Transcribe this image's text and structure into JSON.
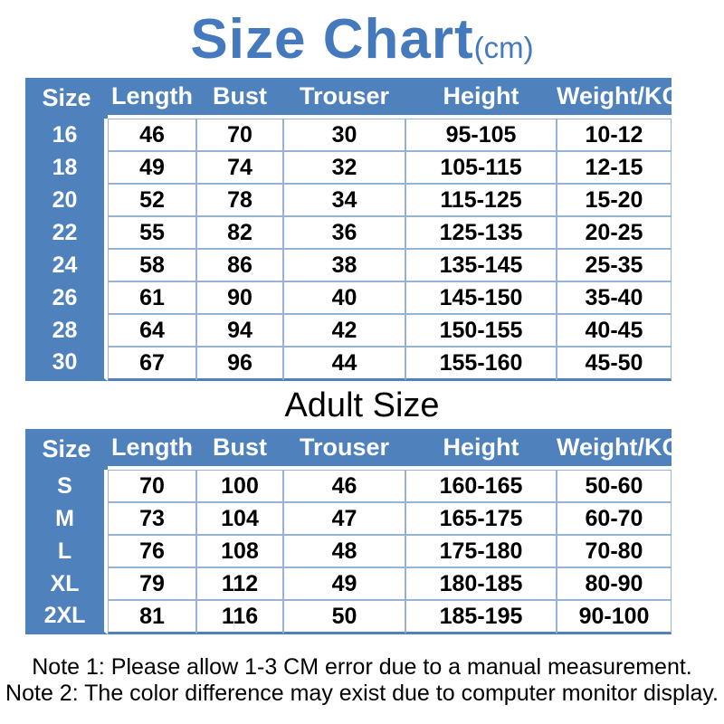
{
  "title": {
    "main": "Size Chart",
    "unit": "(cm)"
  },
  "adult_section_title": "Adult Size",
  "notes": [
    "Note 1: Please allow 1-3 CM error due to a manual measurement.",
    "Note 2: The color difference may exist due to computer monitor display."
  ],
  "colors": {
    "table_blue": "#4f81bd",
    "title_blue": "#4479bd",
    "grid_line": "#95b3d7",
    "header_text": "#ffffff",
    "body_text": "#000000"
  },
  "chart_data": [
    {
      "type": "table",
      "title": "Size Chart (cm)",
      "section": "kids",
      "columns": [
        "Size",
        "Length",
        "Bust",
        "Trouser",
        "Height",
        "Weight/KG"
      ],
      "rows": [
        [
          "16",
          "46",
          "70",
          "30",
          "95-105",
          "10-12"
        ],
        [
          "18",
          "49",
          "74",
          "32",
          "105-115",
          "12-15"
        ],
        [
          "20",
          "52",
          "78",
          "34",
          "115-125",
          "15-20"
        ],
        [
          "22",
          "55",
          "82",
          "36",
          "125-135",
          "20-25"
        ],
        [
          "24",
          "58",
          "86",
          "38",
          "135-145",
          "25-35"
        ],
        [
          "26",
          "61",
          "90",
          "40",
          "145-150",
          "35-40"
        ],
        [
          "28",
          "64",
          "94",
          "42",
          "150-155",
          "40-45"
        ],
        [
          "30",
          "67",
          "96",
          "44",
          "155-160",
          "45-50"
        ]
      ]
    },
    {
      "type": "table",
      "title": "Adult Size",
      "section": "adult",
      "columns": [
        "Size",
        "Length",
        "Bust",
        "Trouser",
        "Height",
        "Weight/KG"
      ],
      "rows": [
        [
          "S",
          "70",
          "100",
          "46",
          "160-165",
          "50-60"
        ],
        [
          "M",
          "73",
          "104",
          "47",
          "165-175",
          "60-70"
        ],
        [
          "L",
          "76",
          "108",
          "48",
          "175-180",
          "70-80"
        ],
        [
          "XL",
          "79",
          "112",
          "49",
          "180-185",
          "80-90"
        ],
        [
          "2XL",
          "81",
          "116",
          "50",
          "185-195",
          "90-100"
        ]
      ]
    }
  ]
}
